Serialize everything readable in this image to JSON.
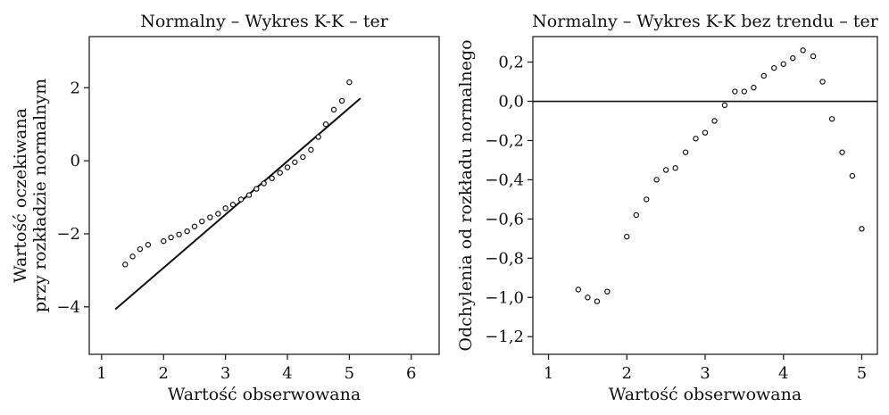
{
  "chart_data": [
    {
      "type": "scatter",
      "title": "Normalny – Wykres K-K – ter",
      "xlabel": "Wartość obserwowana",
      "ylabel": [
        "Wartość oczekiwana",
        "przy rozkładzie normalnym"
      ],
      "xlim": [
        0.8,
        6.45
      ],
      "ylim": [
        -5.3,
        3.4
      ],
      "xticks": [
        1,
        2,
        3,
        4,
        5,
        6
      ],
      "xtick_labels": [
        "1",
        "2",
        "3",
        "4",
        "5",
        "6"
      ],
      "yticks": [
        -4,
        -2,
        0,
        2
      ],
      "ytick_labels": [
        "−4",
        "−2",
        "0",
        "2"
      ],
      "reference_line": {
        "x": [
          1.22,
          5.18
        ],
        "y": [
          -4.07,
          1.71
        ]
      },
      "grid": false,
      "series": [
        {
          "x": [
            1.38,
            1.5,
            1.62,
            1.75,
            2.0,
            2.12,
            2.25,
            2.38,
            2.5,
            2.62,
            2.75,
            2.88,
            3.0,
            3.12,
            3.25,
            3.38,
            3.5,
            3.62,
            3.75,
            3.88,
            4.0,
            4.12,
            4.25,
            4.38,
            4.5,
            4.62,
            4.75,
            4.88,
            5.0
          ],
          "y": [
            -2.84,
            -2.62,
            -2.42,
            -2.3,
            -2.2,
            -2.1,
            -2.02,
            -1.93,
            -1.8,
            -1.66,
            -1.55,
            -1.45,
            -1.3,
            -1.2,
            -1.06,
            -0.94,
            -0.77,
            -0.62,
            -0.48,
            -0.33,
            -0.18,
            -0.04,
            0.1,
            0.3,
            0.65,
            1.0,
            1.4,
            1.64,
            2.15
          ]
        }
      ]
    },
    {
      "type": "scatter",
      "title": "Normalny – Wykres K-K bez trendu – ter",
      "xlabel": "Wartość obserwowana",
      "ylabel": [
        "Odchylenia od rozkładu normalnego"
      ],
      "xlim": [
        0.8,
        5.2
      ],
      "ylim": [
        -1.29,
        0.33
      ],
      "xticks": [
        1,
        2,
        3,
        4,
        5
      ],
      "xtick_labels": [
        "1",
        "2",
        "3",
        "4",
        "5"
      ],
      "yticks": [
        -1.2,
        -1.0,
        -0.8,
        -0.6,
        -0.4,
        -0.2,
        0.0,
        0.2
      ],
      "ytick_labels": [
        "−1,2",
        "−1,0",
        "−0,8",
        "−0,6",
        "−0,4",
        "−0,2",
        "0,0",
        "0,2"
      ],
      "reference_line": {
        "y": 0
      },
      "grid": false,
      "series": [
        {
          "x": [
            1.38,
            1.5,
            1.62,
            1.75,
            2.0,
            2.12,
            2.25,
            2.38,
            2.5,
            2.62,
            2.75,
            2.88,
            3.0,
            3.12,
            3.25,
            3.38,
            3.5,
            3.62,
            3.75,
            3.88,
            4.0,
            4.12,
            4.25,
            4.38,
            4.5,
            4.62,
            4.75,
            4.88,
            5.0
          ],
          "y": [
            -0.96,
            -1.0,
            -1.02,
            -0.97,
            -0.69,
            -0.58,
            -0.5,
            -0.4,
            -0.35,
            -0.34,
            -0.26,
            -0.19,
            -0.16,
            -0.1,
            -0.02,
            0.05,
            0.05,
            0.07,
            0.13,
            0.17,
            0.19,
            0.22,
            0.26,
            0.23,
            0.1,
            -0.09,
            -0.26,
            -0.38,
            -0.65
          ]
        }
      ]
    }
  ]
}
